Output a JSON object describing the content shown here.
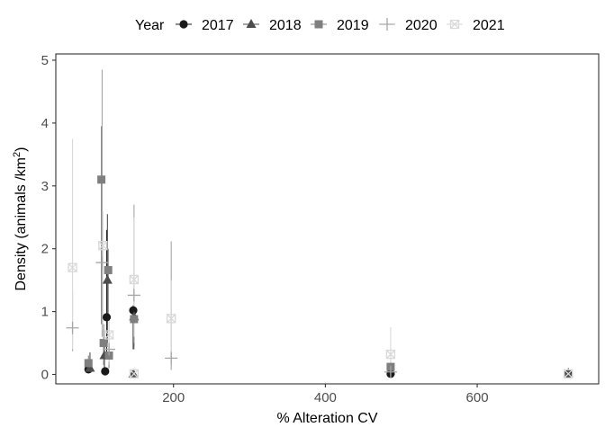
{
  "chart_data": {
    "type": "scatter",
    "title": "",
    "xlabel": "% Alteration CV",
    "ylabel": "Density (animals /km",
    "ylabel_superscript": "2",
    "ylabel_suffix": ")",
    "xlim": [
      45,
      760
    ],
    "ylim": [
      -0.15,
      5.1
    ],
    "x_ticks": [
      200,
      400,
      600
    ],
    "y_ticks": [
      0,
      1,
      2,
      3,
      4,
      5
    ],
    "grid": false,
    "legend": {
      "title": "Year",
      "position": "top",
      "entries": [
        "2017",
        "2018",
        "2019",
        "2020",
        "2021"
      ]
    },
    "series": [
      {
        "name": "2017",
        "marker": "circle",
        "color": "#1a1a1a",
        "points": [
          {
            "x": 112,
            "y": 0.91,
            "lo": 0.3,
            "hi": 2.3
          },
          {
            "x": 147,
            "y": 1.02,
            "lo": 0.4,
            "hi": 1.1
          },
          {
            "x": 88,
            "y": 0.08,
            "lo": 0.03,
            "hi": 0.15
          },
          {
            "x": 110,
            "y": 0.05,
            "lo": 0.0,
            "hi": 0.1
          },
          {
            "x": 486,
            "y": 0.01,
            "lo": 0.0,
            "hi": 0.04
          },
          {
            "x": 720,
            "y": 0.01,
            "lo": 0.0,
            "hi": 0.03
          }
        ]
      },
      {
        "name": "2018",
        "marker": "triangle",
        "color": "#4d4d4d",
        "points": [
          {
            "x": 113,
            "y": 1.5,
            "lo": 0.5,
            "hi": 2.55
          },
          {
            "x": 148,
            "y": 0.92,
            "lo": 0.45,
            "hi": 1.05
          },
          {
            "x": 90,
            "y": 0.1,
            "lo": 0.05,
            "hi": 0.35
          },
          {
            "x": 109,
            "y": 0.3,
            "lo": 0.1,
            "hi": 0.55
          },
          {
            "x": 147,
            "y": 0.01,
            "lo": 0.0,
            "hi": 0.03
          },
          {
            "x": 720,
            "y": 0.02,
            "lo": 0.0,
            "hi": 0.04
          }
        ]
      },
      {
        "name": "2019",
        "marker": "square",
        "color": "#7f7f7f",
        "points": [
          {
            "x": 105,
            "y": 3.1,
            "lo": 0.8,
            "hi": 3.95
          },
          {
            "x": 114,
            "y": 1.66,
            "lo": 0.9,
            "hi": 2.0
          },
          {
            "x": 148,
            "y": 0.88,
            "lo": 0.4,
            "hi": 1.0
          },
          {
            "x": 108,
            "y": 0.5,
            "lo": 0.15,
            "hi": 0.8
          },
          {
            "x": 88,
            "y": 0.18,
            "lo": 0.05,
            "hi": 0.3
          },
          {
            "x": 115,
            "y": 0.3,
            "lo": 0.1,
            "hi": 0.5
          },
          {
            "x": 486,
            "y": 0.12,
            "lo": 0.0,
            "hi": 0.2
          }
        ]
      },
      {
        "name": "2020",
        "marker": "plus",
        "color": "#a6a6a6",
        "points": [
          {
            "x": 67,
            "y": 0.74,
            "lo": 0.37,
            "hi": 1.34
          },
          {
            "x": 106,
            "y": 1.78,
            "lo": 0.6,
            "hi": 4.85
          },
          {
            "x": 148,
            "y": 1.26,
            "lo": 0.5,
            "hi": 2.7
          },
          {
            "x": 197,
            "y": 0.26,
            "lo": 0.07,
            "hi": 2.12
          },
          {
            "x": 115,
            "y": 0.4,
            "lo": 0.15,
            "hi": 0.9
          },
          {
            "x": 486,
            "y": 0.04,
            "lo": 0.0,
            "hi": 0.1
          }
        ]
      },
      {
        "name": "2021",
        "marker": "square-x",
        "color": "#d9d9d9",
        "points": [
          {
            "x": 67,
            "y": 1.7,
            "lo": 0.4,
            "hi": 3.75
          },
          {
            "x": 107,
            "y": 2.05,
            "lo": 0.7,
            "hi": 2.6
          },
          {
            "x": 148,
            "y": 1.51,
            "lo": 0.6,
            "hi": 2.5
          },
          {
            "x": 197,
            "y": 0.89,
            "lo": 0.3,
            "hi": 1.5
          },
          {
            "x": 115,
            "y": 0.63,
            "lo": 0.2,
            "hi": 0.9
          },
          {
            "x": 486,
            "y": 0.32,
            "lo": 0.1,
            "hi": 0.75
          },
          {
            "x": 148,
            "y": 0.01,
            "lo": 0.0,
            "hi": 0.04
          },
          {
            "x": 720,
            "y": 0.01,
            "lo": 0.0,
            "hi": 0.03
          }
        ]
      }
    ]
  }
}
